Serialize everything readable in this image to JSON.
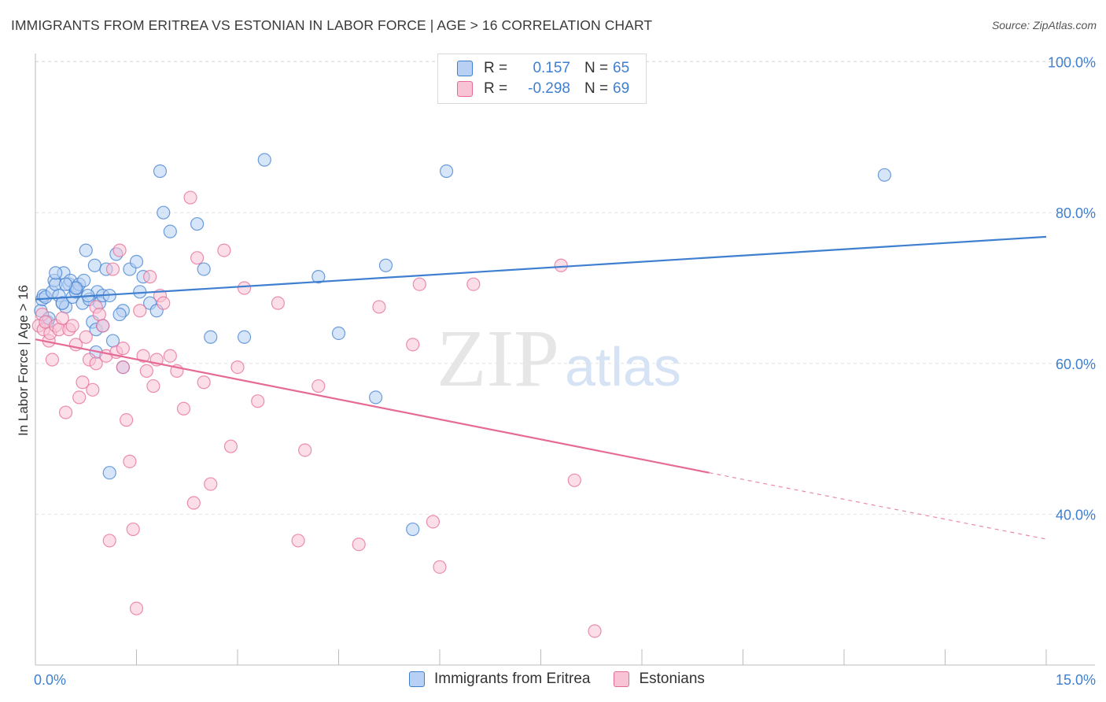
{
  "header": {
    "title": "IMMIGRANTS FROM ERITREA VS ESTONIAN IN LABOR FORCE | AGE > 16 CORRELATION CHART",
    "source": "Source: ZipAtlas.com"
  },
  "legend": {
    "series1": {
      "r_label": "R =",
      "r_value": "0.157",
      "n_label": "N =",
      "n_value": "65"
    },
    "series2": {
      "r_label": "R =",
      "r_value": "-0.298",
      "n_label": "N =",
      "n_value": "69"
    }
  },
  "bottom_legend": {
    "series1_name": "Immigrants from Eritrea",
    "series2_name": "Estonians"
  },
  "watermark": {
    "zip": "ZIP",
    "atlas": "atlas"
  },
  "colors": {
    "blue": "#3f7fd0",
    "blue_fill": "#b7d0f3",
    "pink": "#e56b96",
    "pink_fill": "#f7c3d5",
    "grid": "#e2e2e2"
  },
  "chart_data": {
    "type": "scatter",
    "title": "IMMIGRANTS FROM ERITREA VS ESTONIAN IN LABOR FORCE | AGE > 16 CORRELATION CHART",
    "xlabel": "",
    "ylabel": "In Labor Force | Age > 16",
    "xlim": [
      0,
      15
    ],
    "ylim": [
      20,
      100
    ],
    "x_tick_labels": [
      "0.0%",
      "15.0%"
    ],
    "y_ticks": [
      40,
      60,
      80,
      100
    ],
    "y_tick_labels": [
      "40.0%",
      "60.0%",
      "80.0%",
      "100.0%"
    ],
    "grid": true,
    "legend_position": "top-center",
    "series": [
      {
        "name": "Immigrants from Eritrea",
        "color": "#3f7fd0",
        "r": 0.157,
        "n": 65,
        "trend": {
          "x": [
            0,
            15
          ],
          "y": [
            68.5,
            76.8
          ]
        },
        "points": [
          [
            0.08,
            67
          ],
          [
            0.1,
            68.5
          ],
          [
            0.12,
            69
          ],
          [
            0.15,
            68.8
          ],
          [
            0.18,
            65.5
          ],
          [
            0.2,
            66
          ],
          [
            0.25,
            69.5
          ],
          [
            0.28,
            71
          ],
          [
            0.3,
            70.5
          ],
          [
            0.35,
            69
          ],
          [
            0.4,
            68
          ],
          [
            0.42,
            72
          ],
          [
            0.45,
            67.5
          ],
          [
            0.5,
            70.5
          ],
          [
            0.52,
            71
          ],
          [
            0.55,
            68.8
          ],
          [
            0.6,
            69.5
          ],
          [
            0.62,
            70
          ],
          [
            0.65,
            70.5
          ],
          [
            0.7,
            68
          ],
          [
            0.72,
            71
          ],
          [
            0.75,
            75
          ],
          [
            0.8,
            68.5
          ],
          [
            0.85,
            65.5
          ],
          [
            0.88,
            73
          ],
          [
            0.9,
            64.5
          ],
          [
            0.92,
            69.5
          ],
          [
            0.95,
            68
          ],
          [
            1.0,
            69
          ],
          [
            1.05,
            72.5
          ],
          [
            1.1,
            69
          ],
          [
            1.15,
            63
          ],
          [
            1.2,
            74.5
          ],
          [
            1.3,
            67
          ],
          [
            1.4,
            72.5
          ],
          [
            1.5,
            73.5
          ],
          [
            1.55,
            69.5
          ],
          [
            1.6,
            71.5
          ],
          [
            1.7,
            68
          ],
          [
            1.8,
            67
          ],
          [
            1.85,
            85.5
          ],
          [
            1.9,
            80
          ],
          [
            2.0,
            77.5
          ],
          [
            2.4,
            78.5
          ],
          [
            2.5,
            72.5
          ],
          [
            2.6,
            63.5
          ],
          [
            3.1,
            63.5
          ],
          [
            3.4,
            87
          ],
          [
            4.2,
            71.5
          ],
          [
            4.5,
            64
          ],
          [
            5.2,
            73
          ],
          [
            5.05,
            55.5
          ],
          [
            5.6,
            38
          ],
          [
            6.1,
            85.5
          ],
          [
            12.6,
            85
          ],
          [
            1.3,
            59.5
          ],
          [
            0.9,
            61.5
          ],
          [
            1.1,
            45.5
          ],
          [
            0.4,
            68
          ],
          [
            0.6,
            70
          ],
          [
            1.0,
            65
          ],
          [
            1.25,
            66.5
          ],
          [
            0.3,
            72
          ],
          [
            0.45,
            70.5
          ],
          [
            0.78,
            69
          ]
        ]
      },
      {
        "name": "Estonians",
        "color": "#e56b96",
        "r": -0.298,
        "n": 69,
        "trend": {
          "x": [
            0,
            10
          ],
          "y": [
            63.2,
            45.5
          ]
        },
        "trend_dashed": {
          "x": [
            10,
            15
          ],
          "y": [
            45.5,
            36.7
          ]
        },
        "points": [
          [
            0.05,
            65
          ],
          [
            0.1,
            66.5
          ],
          [
            0.12,
            64.5
          ],
          [
            0.15,
            65.5
          ],
          [
            0.2,
            63
          ],
          [
            0.22,
            64
          ],
          [
            0.25,
            60.5
          ],
          [
            0.3,
            65
          ],
          [
            0.35,
            64.5
          ],
          [
            0.4,
            66
          ],
          [
            0.45,
            53.5
          ],
          [
            0.5,
            64.5
          ],
          [
            0.55,
            65
          ],
          [
            0.6,
            62.5
          ],
          [
            0.65,
            55.5
          ],
          [
            0.7,
            57.5
          ],
          [
            0.75,
            63.5
          ],
          [
            0.8,
            60.5
          ],
          [
            0.85,
            56.5
          ],
          [
            0.9,
            67.5
          ],
          [
            0.95,
            66.5
          ],
          [
            1.0,
            65
          ],
          [
            1.05,
            61
          ],
          [
            1.1,
            36.5
          ],
          [
            1.15,
            72.5
          ],
          [
            1.2,
            61.5
          ],
          [
            1.25,
            75
          ],
          [
            1.3,
            59.5
          ],
          [
            1.35,
            52.5
          ],
          [
            1.4,
            47
          ],
          [
            1.45,
            38
          ],
          [
            1.5,
            27.5
          ],
          [
            1.55,
            67
          ],
          [
            1.6,
            61
          ],
          [
            1.65,
            59
          ],
          [
            1.7,
            71.5
          ],
          [
            1.75,
            57
          ],
          [
            1.8,
            60.5
          ],
          [
            1.85,
            69
          ],
          [
            1.9,
            68
          ],
          [
            2.0,
            61
          ],
          [
            2.1,
            59
          ],
          [
            2.2,
            54
          ],
          [
            2.3,
            82
          ],
          [
            2.35,
            41.5
          ],
          [
            2.4,
            74
          ],
          [
            2.5,
            57.5
          ],
          [
            2.6,
            44
          ],
          [
            2.8,
            75
          ],
          [
            2.9,
            49
          ],
          [
            3.0,
            59.5
          ],
          [
            3.1,
            70
          ],
          [
            3.3,
            55
          ],
          [
            3.6,
            68
          ],
          [
            3.9,
            36.5
          ],
          [
            4.0,
            48.5
          ],
          [
            4.2,
            57
          ],
          [
            4.8,
            36
          ],
          [
            5.1,
            67.5
          ],
          [
            5.6,
            62.5
          ],
          [
            5.7,
            70.5
          ],
          [
            6.0,
            33
          ],
          [
            5.9,
            39
          ],
          [
            6.5,
            70.5
          ],
          [
            7.8,
            73
          ],
          [
            8.0,
            44.5
          ],
          [
            8.3,
            24.5
          ],
          [
            0.9,
            60
          ],
          [
            1.3,
            62
          ]
        ]
      }
    ]
  }
}
